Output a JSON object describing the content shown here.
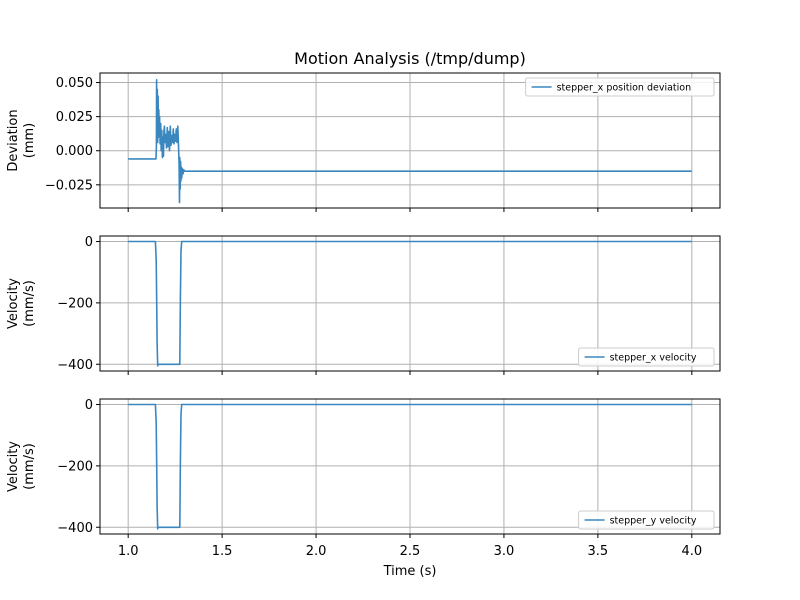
{
  "chart_data": {
    "title": "Motion Analysis (/tmp/dump)",
    "xlabel": "Time (s)",
    "type": "line",
    "xlim": [
      0.85,
      4.15
    ],
    "x_ticks": [
      1.0,
      1.5,
      2.0,
      2.5,
      3.0,
      3.5,
      4.0
    ],
    "x_tick_labels": [
      "1.0",
      "1.5",
      "2.0",
      "2.5",
      "3.0",
      "3.5",
      "4.0"
    ],
    "color": "#3a87c0",
    "grid": true,
    "panels": [
      {
        "ylabel": [
          "Deviation",
          "(mm)"
        ],
        "ylim": [
          -0.042,
          0.057
        ],
        "y_ticks": [
          0.05,
          0.025,
          0.0,
          -0.025
        ],
        "y_tick_labels": [
          "0.050",
          "0.025",
          "0.000",
          "−0.025"
        ],
        "legend_position": "top-right",
        "series": [
          {
            "name": "stepper_x position deviation",
            "x": [
              1.0,
              1.148,
              1.15,
              1.151,
              1.153,
              1.155,
              1.157,
              1.159,
              1.161,
              1.163,
              1.165,
              1.167,
              1.17,
              1.173,
              1.176,
              1.179,
              1.182,
              1.185,
              1.188,
              1.19,
              1.193,
              1.196,
              1.2,
              1.204,
              1.208,
              1.212,
              1.216,
              1.22,
              1.224,
              1.228,
              1.232,
              1.236,
              1.24,
              1.244,
              1.248,
              1.252,
              1.256,
              1.26,
              1.264,
              1.268,
              1.271,
              1.273,
              1.275,
              1.277,
              1.279,
              1.281,
              1.283,
              1.285,
              1.288,
              1.292,
              1.296,
              1.3,
              1.31,
              1.33,
              4.0
            ],
            "values": [
              -0.006,
              -0.006,
              0.004,
              0.052,
              0.01,
              0.045,
              0.006,
              0.04,
              0.02,
              0.03,
              0.01,
              0.025,
              0.005,
              0.02,
              0.0,
              0.015,
              -0.005,
              0.01,
              -0.004,
              0.014,
              0.018,
              0.006,
              0.012,
              0.002,
              0.017,
              0.003,
              0.014,
              0.0,
              0.018,
              0.004,
              0.011,
              0.006,
              0.016,
              0.005,
              0.012,
              0.007,
              0.016,
              0.006,
              0.018,
              0.004,
              -0.01,
              -0.038,
              -0.005,
              -0.028,
              -0.008,
              -0.022,
              -0.012,
              -0.02,
              -0.013,
              -0.017,
              -0.014,
              -0.015,
              -0.015,
              -0.015,
              -0.015
            ]
          }
        ]
      },
      {
        "ylabel": [
          "Velocity",
          "(mm/s)"
        ],
        "ylim": [
          -422,
          18
        ],
        "y_ticks": [
          0,
          -200,
          -400
        ],
        "y_tick_labels": [
          "0",
          "−200",
          "−400"
        ],
        "legend_position": "bottom-right",
        "series": [
          {
            "name": "stepper_x velocity",
            "x": [
              1.0,
              1.145,
              1.149,
              1.152,
              1.154,
              1.157,
              1.16,
              1.27,
              1.275,
              1.278,
              1.281,
              1.285,
              4.0
            ],
            "values": [
              0,
              0,
              -60,
              -200,
              -330,
              -405,
              -400,
              -400,
              -400,
              -180,
              -30,
              0,
              0
            ]
          }
        ]
      },
      {
        "ylabel": [
          "Velocity",
          "(mm/s)"
        ],
        "ylim": [
          -422,
          18
        ],
        "y_ticks": [
          0,
          -200,
          -400
        ],
        "y_tick_labels": [
          "0",
          "−200",
          "−400"
        ],
        "legend_position": "bottom-right",
        "series": [
          {
            "name": "stepper_y velocity",
            "x": [
              1.0,
              1.145,
              1.149,
              1.152,
              1.154,
              1.157,
              1.16,
              1.27,
              1.275,
              1.278,
              1.281,
              1.285,
              4.0
            ],
            "values": [
              0,
              0,
              -60,
              -200,
              -330,
              -405,
              -400,
              -400,
              -400,
              -180,
              -30,
              0,
              0
            ]
          }
        ]
      }
    ]
  }
}
